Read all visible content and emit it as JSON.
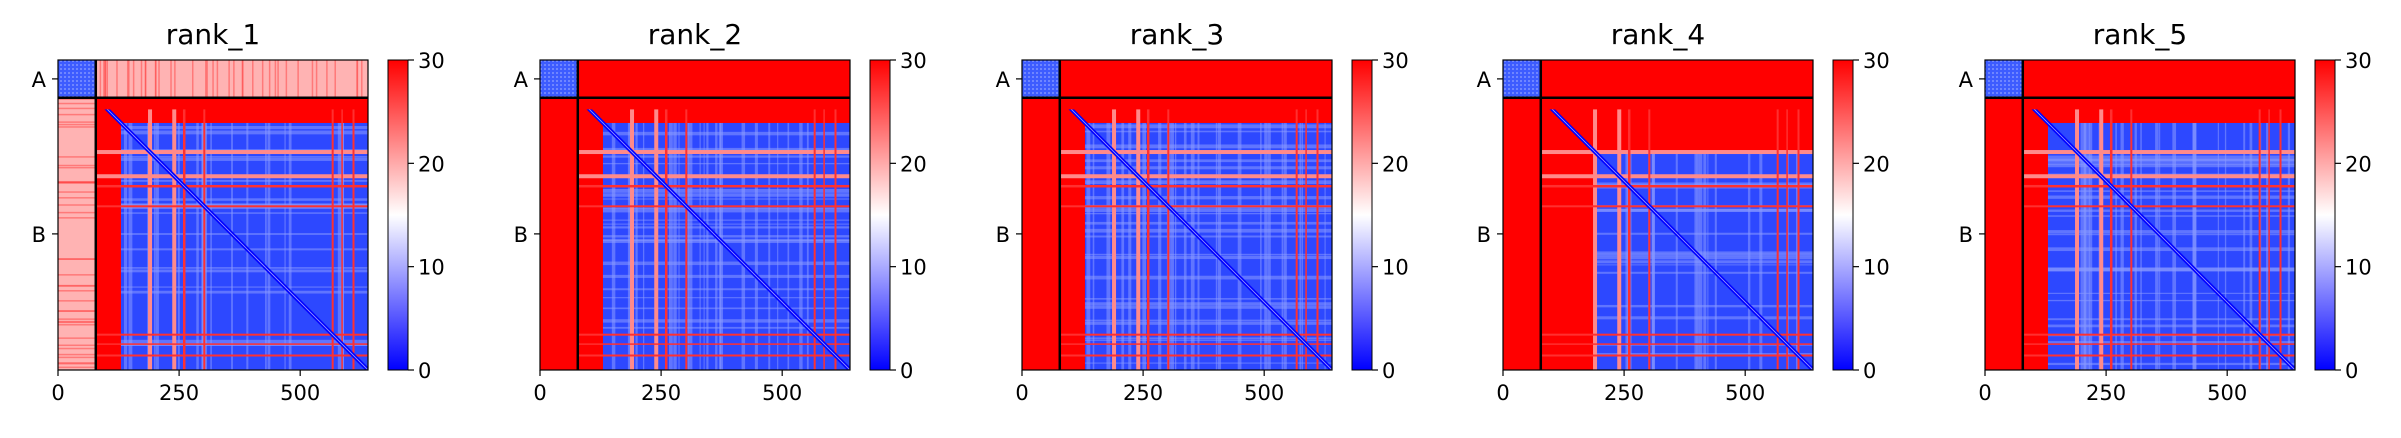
{
  "chart_data": [
    {
      "type": "heatmap",
      "title": "rank_1",
      "chain_labels": [
        "A",
        "B"
      ],
      "x_ticks": [
        0,
        250,
        500
      ],
      "colorbar": {
        "min": 0,
        "max": 30,
        "ticks": [
          0,
          10,
          20,
          30
        ],
        "colors": [
          "#0000ff",
          "#ffffff",
          "#ff0000"
        ]
      }
    },
    {
      "type": "heatmap",
      "title": "rank_2",
      "chain_labels": [
        "A",
        "B"
      ],
      "x_ticks": [
        0,
        250,
        500
      ],
      "colorbar": {
        "min": 0,
        "max": 30,
        "ticks": [
          0,
          10,
          20,
          30
        ],
        "colors": [
          "#0000ff",
          "#ffffff",
          "#ff0000"
        ]
      }
    },
    {
      "type": "heatmap",
      "title": "rank_3",
      "chain_labels": [
        "A",
        "B"
      ],
      "x_ticks": [
        0,
        250,
        500
      ],
      "colorbar": {
        "min": 0,
        "max": 30,
        "ticks": [
          0,
          10,
          20,
          30
        ],
        "colors": [
          "#0000ff",
          "#ffffff",
          "#ff0000"
        ]
      }
    },
    {
      "type": "heatmap",
      "title": "rank_4",
      "chain_labels": [
        "A",
        "B"
      ],
      "x_ticks": [
        0,
        250,
        500
      ],
      "colorbar": {
        "min": 0,
        "max": 30,
        "ticks": [
          0,
          10,
          20,
          30
        ],
        "colors": [
          "#0000ff",
          "#ffffff",
          "#ff0000"
        ]
      }
    },
    {
      "type": "heatmap",
      "title": "rank_5",
      "chain_labels": [
        "A",
        "B"
      ],
      "x_ticks": [
        0,
        250,
        500
      ],
      "colorbar": {
        "min": 0,
        "max": 30,
        "ticks": [
          0,
          10,
          20,
          30
        ],
        "colors": [
          "#0000ff",
          "#ffffff",
          "#ff0000"
        ]
      }
    }
  ]
}
